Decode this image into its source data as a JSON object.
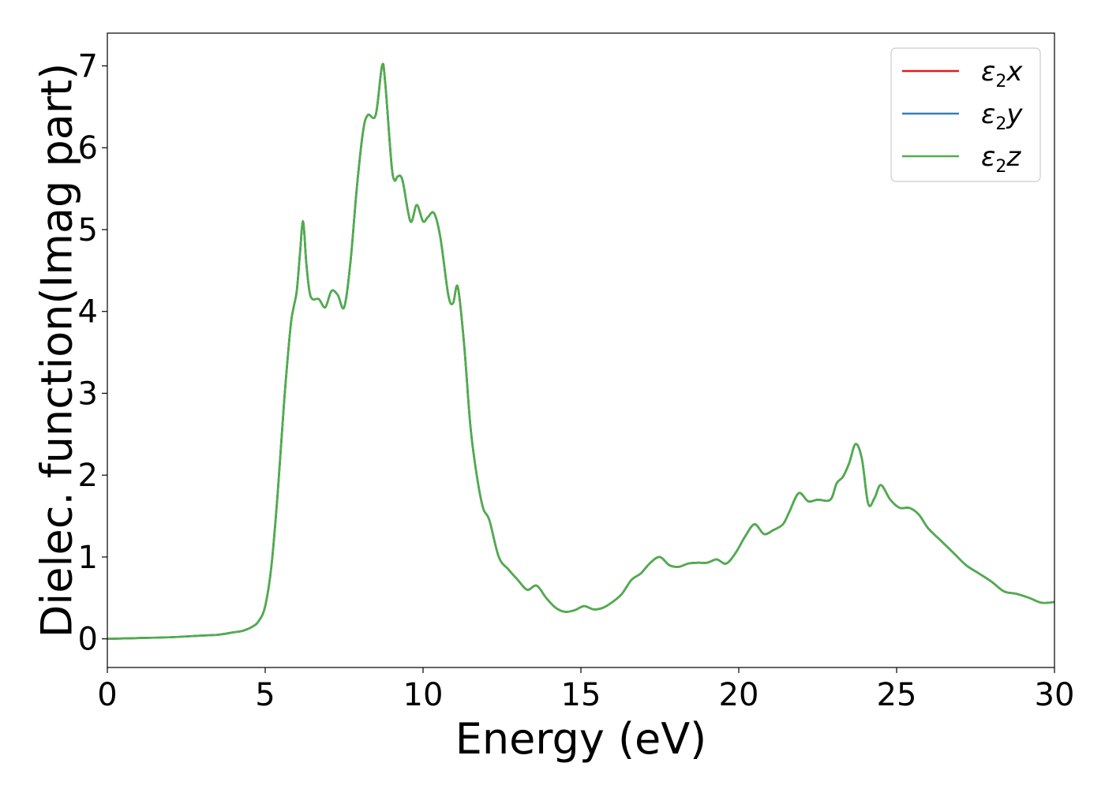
{
  "chart_data": {
    "type": "line",
    "title": "",
    "xlabel": "Energy (eV)",
    "ylabel": "Dielec. function(Imag part)",
    "xlim": [
      0,
      30
    ],
    "ylim": [
      -0.35,
      7.4
    ],
    "xticks": [
      "0",
      "5",
      "10",
      "15",
      "20",
      "25",
      "30"
    ],
    "yticks": [
      "0",
      "1",
      "2",
      "3",
      "4",
      "5",
      "6",
      "7"
    ],
    "grid": false,
    "legend_position": "top-right",
    "x": [
      0,
      1,
      2,
      3,
      3.5,
      4,
      4.3,
      4.6,
      4.8,
      5.0,
      5.2,
      5.4,
      5.6,
      5.8,
      5.9,
      6.0,
      6.1,
      6.2,
      6.3,
      6.4,
      6.5,
      6.7,
      6.9,
      7.1,
      7.3,
      7.5,
      7.7,
      7.9,
      8.1,
      8.25,
      8.5,
      8.7,
      8.8,
      9.0,
      9.1,
      9.2,
      9.35,
      9.6,
      9.8,
      10.0,
      10.15,
      10.35,
      10.55,
      10.8,
      10.95,
      11.1,
      11.3,
      11.5,
      11.7,
      11.9,
      12.1,
      12.4,
      12.7,
      13.0,
      13.3,
      13.6,
      13.9,
      14.2,
      14.5,
      14.8,
      15.1,
      15.4,
      15.7,
      16.0,
      16.3,
      16.6,
      16.9,
      17.2,
      17.5,
      17.8,
      18.1,
      18.4,
      18.7,
      19.0,
      19.3,
      19.6,
      19.9,
      20.2,
      20.5,
      20.8,
      21.1,
      21.4,
      21.6,
      21.9,
      22.2,
      22.5,
      22.9,
      23.1,
      23.3,
      23.5,
      23.7,
      23.9,
      24.1,
      24.3,
      24.5,
      24.8,
      25.1,
      25.4,
      25.7,
      26.0,
      26.4,
      26.8,
      27.2,
      27.6,
      28.0,
      28.4,
      28.8,
      29.2,
      29.6,
      30.0
    ],
    "series": [
      {
        "name": "ε₂x",
        "color": "#e41a1c",
        "y": [
          0.0,
          0.01,
          0.02,
          0.04,
          0.05,
          0.08,
          0.1,
          0.15,
          0.22,
          0.4,
          0.9,
          1.8,
          2.9,
          3.8,
          4.05,
          4.25,
          4.7,
          5.1,
          4.6,
          4.25,
          4.15,
          4.15,
          4.05,
          4.25,
          4.2,
          4.05,
          4.6,
          5.5,
          6.2,
          6.4,
          6.4,
          7.0,
          6.8,
          5.8,
          5.6,
          5.65,
          5.6,
          5.1,
          5.3,
          5.1,
          5.15,
          5.2,
          4.9,
          4.2,
          4.1,
          4.3,
          3.6,
          2.6,
          2.0,
          1.6,
          1.45,
          1.0,
          0.85,
          0.72,
          0.6,
          0.65,
          0.5,
          0.38,
          0.33,
          0.35,
          0.4,
          0.36,
          0.38,
          0.45,
          0.55,
          0.72,
          0.8,
          0.93,
          1.0,
          0.9,
          0.88,
          0.92,
          0.93,
          0.93,
          0.97,
          0.92,
          1.05,
          1.25,
          1.4,
          1.28,
          1.33,
          1.4,
          1.55,
          1.78,
          1.68,
          1.7,
          1.7,
          1.9,
          1.98,
          2.15,
          2.38,
          2.2,
          1.65,
          1.72,
          1.88,
          1.7,
          1.6,
          1.6,
          1.52,
          1.35,
          1.2,
          1.05,
          0.9,
          0.8,
          0.7,
          0.58,
          0.55,
          0.5,
          0.44,
          0.45
        ]
      },
      {
        "name": "ε₂y",
        "color": "#377eb8",
        "y": [
          0.0,
          0.01,
          0.02,
          0.04,
          0.05,
          0.08,
          0.1,
          0.15,
          0.22,
          0.4,
          0.9,
          1.8,
          2.9,
          3.8,
          4.05,
          4.25,
          4.7,
          5.1,
          4.6,
          4.25,
          4.15,
          4.15,
          4.05,
          4.25,
          4.2,
          4.05,
          4.6,
          5.5,
          6.2,
          6.4,
          6.4,
          7.0,
          6.8,
          5.8,
          5.6,
          5.65,
          5.6,
          5.1,
          5.3,
          5.1,
          5.15,
          5.2,
          4.9,
          4.2,
          4.1,
          4.3,
          3.6,
          2.6,
          2.0,
          1.6,
          1.45,
          1.0,
          0.85,
          0.72,
          0.6,
          0.65,
          0.5,
          0.38,
          0.33,
          0.35,
          0.4,
          0.36,
          0.38,
          0.45,
          0.55,
          0.72,
          0.8,
          0.93,
          1.0,
          0.9,
          0.88,
          0.92,
          0.93,
          0.93,
          0.97,
          0.92,
          1.05,
          1.25,
          1.4,
          1.28,
          1.33,
          1.4,
          1.55,
          1.78,
          1.68,
          1.7,
          1.7,
          1.9,
          1.98,
          2.15,
          2.38,
          2.2,
          1.65,
          1.72,
          1.88,
          1.7,
          1.6,
          1.6,
          1.52,
          1.35,
          1.2,
          1.05,
          0.9,
          0.8,
          0.7,
          0.58,
          0.55,
          0.5,
          0.44,
          0.45
        ]
      },
      {
        "name": "ε₂z",
        "color": "#4daf4a",
        "y": [
          0.0,
          0.01,
          0.02,
          0.04,
          0.05,
          0.08,
          0.1,
          0.15,
          0.22,
          0.4,
          0.9,
          1.8,
          2.9,
          3.8,
          4.05,
          4.25,
          4.7,
          5.1,
          4.6,
          4.25,
          4.15,
          4.15,
          4.05,
          4.25,
          4.2,
          4.05,
          4.6,
          5.5,
          6.2,
          6.4,
          6.4,
          7.0,
          6.8,
          5.8,
          5.6,
          5.65,
          5.6,
          5.1,
          5.3,
          5.1,
          5.15,
          5.2,
          4.9,
          4.2,
          4.1,
          4.3,
          3.6,
          2.6,
          2.0,
          1.6,
          1.45,
          1.0,
          0.85,
          0.72,
          0.6,
          0.65,
          0.5,
          0.38,
          0.33,
          0.35,
          0.4,
          0.36,
          0.38,
          0.45,
          0.55,
          0.72,
          0.8,
          0.93,
          1.0,
          0.9,
          0.88,
          0.92,
          0.93,
          0.93,
          0.97,
          0.92,
          1.05,
          1.25,
          1.4,
          1.28,
          1.33,
          1.4,
          1.55,
          1.78,
          1.68,
          1.7,
          1.7,
          1.9,
          1.98,
          2.15,
          2.38,
          2.2,
          1.65,
          1.72,
          1.88,
          1.7,
          1.6,
          1.6,
          1.52,
          1.35,
          1.2,
          1.05,
          0.9,
          0.8,
          0.7,
          0.58,
          0.55,
          0.5,
          0.44,
          0.45
        ]
      }
    ],
    "legend_labels": [
      {
        "base": "ε",
        "sub": "2",
        "tail": "x"
      },
      {
        "base": "ε",
        "sub": "2",
        "tail": "y"
      },
      {
        "base": "ε",
        "sub": "2",
        "tail": "z"
      }
    ]
  }
}
